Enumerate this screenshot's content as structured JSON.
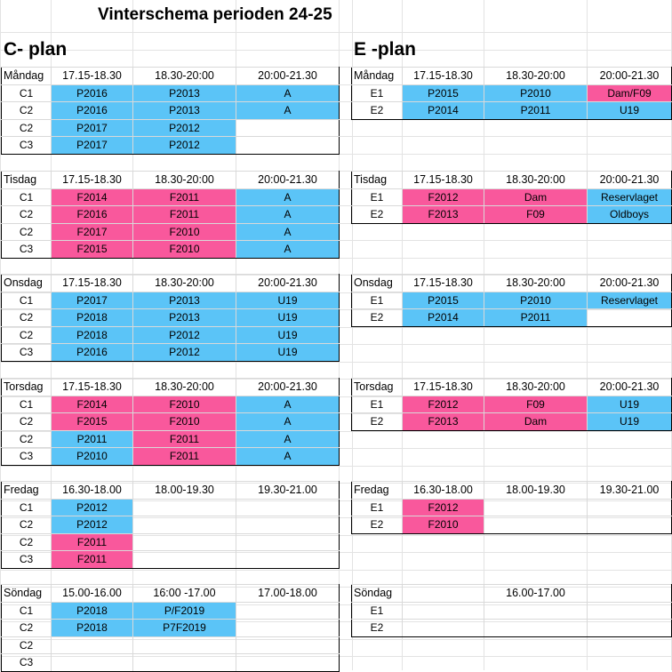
{
  "title": "Vinterschema perioden 24-25",
  "colors": {
    "blue": "#5bc4f7",
    "pink": "#f9589c"
  },
  "c_plan": {
    "heading": "C- plan",
    "days": [
      {
        "day": "Måndag",
        "times": [
          "17.15-18.30",
          "18.30-20:00",
          "20:00-21.30"
        ],
        "rows": [
          {
            "label": "C1",
            "cells": [
              {
                "t": "P2016",
                "c": "blue"
              },
              {
                "t": "P2013",
                "c": "blue"
              },
              {
                "t": "A",
                "c": "blue"
              }
            ]
          },
          {
            "label": "C2",
            "cells": [
              {
                "t": "P2016",
                "c": "blue"
              },
              {
                "t": "P2013",
                "c": "blue"
              },
              {
                "t": "A",
                "c": "blue"
              }
            ]
          },
          {
            "label": "C2",
            "cells": [
              {
                "t": "P2017",
                "c": "blue"
              },
              {
                "t": "P2012",
                "c": "blue"
              },
              {
                "t": "",
                "c": ""
              }
            ]
          },
          {
            "label": "C3",
            "cells": [
              {
                "t": "P2017",
                "c": "blue"
              },
              {
                "t": "P2012",
                "c": "blue"
              },
              {
                "t": "",
                "c": ""
              }
            ]
          }
        ]
      },
      {
        "day": "Tisdag",
        "times": [
          "17.15-18.30",
          "18.30-20:00",
          "20:00-21.30"
        ],
        "rows": [
          {
            "label": "C1",
            "cells": [
              {
                "t": "F2014",
                "c": "pink"
              },
              {
                "t": "F2011",
                "c": "pink"
              },
              {
                "t": "A",
                "c": "blue"
              }
            ]
          },
          {
            "label": "C2",
            "cells": [
              {
                "t": "F2016",
                "c": "pink"
              },
              {
                "t": "F2011",
                "c": "pink"
              },
              {
                "t": "A",
                "c": "blue"
              }
            ]
          },
          {
            "label": "C2",
            "cells": [
              {
                "t": "F2017",
                "c": "pink"
              },
              {
                "t": "F2010",
                "c": "pink"
              },
              {
                "t": "A",
                "c": "blue"
              }
            ]
          },
          {
            "label": "C3",
            "cells": [
              {
                "t": "F2015",
                "c": "pink"
              },
              {
                "t": "F2010",
                "c": "pink"
              },
              {
                "t": "A",
                "c": "blue"
              }
            ]
          }
        ]
      },
      {
        "day": "Onsdag",
        "times": [
          "17.15-18.30",
          "18.30-20:00",
          "20:00-21.30"
        ],
        "rows": [
          {
            "label": "C1",
            "cells": [
              {
                "t": "P2017",
                "c": "blue"
              },
              {
                "t": "P2013",
                "c": "blue"
              },
              {
                "t": "U19",
                "c": "blue"
              }
            ]
          },
          {
            "label": "C2",
            "cells": [
              {
                "t": "P2018",
                "c": "blue"
              },
              {
                "t": "P2013",
                "c": "blue"
              },
              {
                "t": "U19",
                "c": "blue"
              }
            ]
          },
          {
            "label": "C2",
            "cells": [
              {
                "t": "P2018",
                "c": "blue"
              },
              {
                "t": "P2012",
                "c": "blue"
              },
              {
                "t": "U19",
                "c": "blue"
              }
            ]
          },
          {
            "label": "C3",
            "cells": [
              {
                "t": "P2016",
                "c": "blue"
              },
              {
                "t": "P2012",
                "c": "blue"
              },
              {
                "t": "U19",
                "c": "blue"
              }
            ]
          }
        ]
      },
      {
        "day": "Torsdag",
        "times": [
          "17.15-18.30",
          "18.30-20:00",
          "20:00-21.30"
        ],
        "rows": [
          {
            "label": "C1",
            "cells": [
              {
                "t": "F2014",
                "c": "pink"
              },
              {
                "t": "F2010",
                "c": "pink"
              },
              {
                "t": "A",
                "c": "blue"
              }
            ]
          },
          {
            "label": "C2",
            "cells": [
              {
                "t": "F2015",
                "c": "pink"
              },
              {
                "t": "F2010",
                "c": "pink"
              },
              {
                "t": "A",
                "c": "blue"
              }
            ]
          },
          {
            "label": "C2",
            "cells": [
              {
                "t": "P2011",
                "c": "blue"
              },
              {
                "t": "F2011",
                "c": "pink"
              },
              {
                "t": "A",
                "c": "blue"
              }
            ]
          },
          {
            "label": "C3",
            "cells": [
              {
                "t": "P2010",
                "c": "blue"
              },
              {
                "t": "F2011",
                "c": "pink"
              },
              {
                "t": "A",
                "c": "blue"
              }
            ]
          }
        ]
      },
      {
        "day": "Fredag",
        "times": [
          "16.30-18.00",
          "18.00-19.30",
          "19.30-21.00"
        ],
        "rows": [
          {
            "label": "C1",
            "cells": [
              {
                "t": "P2012",
                "c": "blue"
              },
              {
                "t": "",
                "c": ""
              },
              {
                "t": "",
                "c": ""
              }
            ]
          },
          {
            "label": "C2",
            "cells": [
              {
                "t": "P2012",
                "c": "blue"
              },
              {
                "t": "",
                "c": ""
              },
              {
                "t": "",
                "c": ""
              }
            ]
          },
          {
            "label": "C2",
            "cells": [
              {
                "t": "F2011",
                "c": "pink"
              },
              {
                "t": "",
                "c": ""
              },
              {
                "t": "",
                "c": ""
              }
            ]
          },
          {
            "label": "C3",
            "cells": [
              {
                "t": "F2011",
                "c": "pink"
              },
              {
                "t": "",
                "c": ""
              },
              {
                "t": "",
                "c": ""
              }
            ]
          }
        ]
      },
      {
        "day": "Söndag",
        "times": [
          "15.00-16.00",
          "16:00 -17.00",
          "17.00-18.00"
        ],
        "rows": [
          {
            "label": "C1",
            "cells": [
              {
                "t": "P2018",
                "c": "blue"
              },
              {
                "t": "P/F2019",
                "c": "blue"
              },
              {
                "t": "",
                "c": ""
              }
            ]
          },
          {
            "label": "C2",
            "cells": [
              {
                "t": "P2018",
                "c": "blue"
              },
              {
                "t": "P7F2019",
                "c": "blue"
              },
              {
                "t": "",
                "c": ""
              }
            ]
          },
          {
            "label": "C2",
            "cells": [
              {
                "t": "",
                "c": ""
              },
              {
                "t": "",
                "c": ""
              },
              {
                "t": "",
                "c": ""
              }
            ]
          },
          {
            "label": "C3",
            "cells": [
              {
                "t": "",
                "c": ""
              },
              {
                "t": "",
                "c": ""
              },
              {
                "t": "",
                "c": ""
              }
            ]
          }
        ]
      }
    ]
  },
  "e_plan": {
    "heading": "E -plan",
    "days": [
      {
        "day": "Måndag",
        "times": [
          "17.15-18.30",
          "18.30-20:00",
          "20:00-21.30"
        ],
        "rows": [
          {
            "label": "E1",
            "cells": [
              {
                "t": "P2015",
                "c": "blue"
              },
              {
                "t": "P2010",
                "c": "blue"
              },
              {
                "t": "Dam/F09",
                "c": "pink"
              }
            ]
          },
          {
            "label": "E2",
            "cells": [
              {
                "t": "P2014",
                "c": "blue"
              },
              {
                "t": "P2011",
                "c": "blue"
              },
              {
                "t": "U19",
                "c": "blue"
              }
            ]
          }
        ]
      },
      {
        "day": "Tisdag",
        "times": [
          "17.15-18.30",
          "18.30-20:00",
          "20:00-21.30"
        ],
        "rows": [
          {
            "label": "E1",
            "cells": [
              {
                "t": "F2012",
                "c": "pink"
              },
              {
                "t": "Dam",
                "c": "pink"
              },
              {
                "t": "Reservlaget",
                "c": "blue"
              }
            ]
          },
          {
            "label": "E2",
            "cells": [
              {
                "t": "F2013",
                "c": "pink"
              },
              {
                "t": "F09",
                "c": "pink"
              },
              {
                "t": "Oldboys",
                "c": "blue"
              }
            ]
          }
        ]
      },
      {
        "day": "Onsdag",
        "times": [
          "17.15-18.30",
          "18.30-20:00",
          "20:00-21.30"
        ],
        "rows": [
          {
            "label": "E1",
            "cells": [
              {
                "t": "P2015",
                "c": "blue"
              },
              {
                "t": "P2010",
                "c": "blue"
              },
              {
                "t": "Reservlaget",
                "c": "blue"
              }
            ]
          },
          {
            "label": "E2",
            "cells": [
              {
                "t": "P2014",
                "c": "blue"
              },
              {
                "t": "P2011",
                "c": "blue"
              },
              {
                "t": "",
                "c": ""
              }
            ]
          }
        ]
      },
      {
        "day": "Torsdag",
        "times": [
          "17.15-18.30",
          "18.30-20:00",
          "20:00-21.30"
        ],
        "rows": [
          {
            "label": "E1",
            "cells": [
              {
                "t": "F2012",
                "c": "pink"
              },
              {
                "t": "F09",
                "c": "pink"
              },
              {
                "t": "U19",
                "c": "blue"
              }
            ]
          },
          {
            "label": "E2",
            "cells": [
              {
                "t": "F2013",
                "c": "pink"
              },
              {
                "t": "Dam",
                "c": "pink"
              },
              {
                "t": "U19",
                "c": "blue"
              }
            ]
          }
        ]
      },
      {
        "day": "Fredag",
        "times": [
          "16.30-18.00",
          "18.00-19.30",
          "19.30-21.00"
        ],
        "rows": [
          {
            "label": "E1",
            "cells": [
              {
                "t": "F2012",
                "c": "pink"
              },
              {
                "t": "",
                "c": ""
              },
              {
                "t": "",
                "c": ""
              }
            ]
          },
          {
            "label": "E2",
            "cells": [
              {
                "t": "F2010",
                "c": "pink"
              },
              {
                "t": "",
                "c": ""
              },
              {
                "t": "",
                "c": ""
              }
            ]
          }
        ]
      },
      {
        "day": "Söndag",
        "times": [
          "",
          "16.00-17.00",
          ""
        ],
        "rows": [
          {
            "label": "E1",
            "cells": [
              {
                "t": "",
                "c": ""
              },
              {
                "t": "",
                "c": ""
              },
              {
                "t": "",
                "c": ""
              }
            ]
          },
          {
            "label": "E2",
            "cells": [
              {
                "t": "",
                "c": ""
              },
              {
                "t": "",
                "c": ""
              },
              {
                "t": "",
                "c": ""
              }
            ]
          }
        ]
      }
    ]
  }
}
